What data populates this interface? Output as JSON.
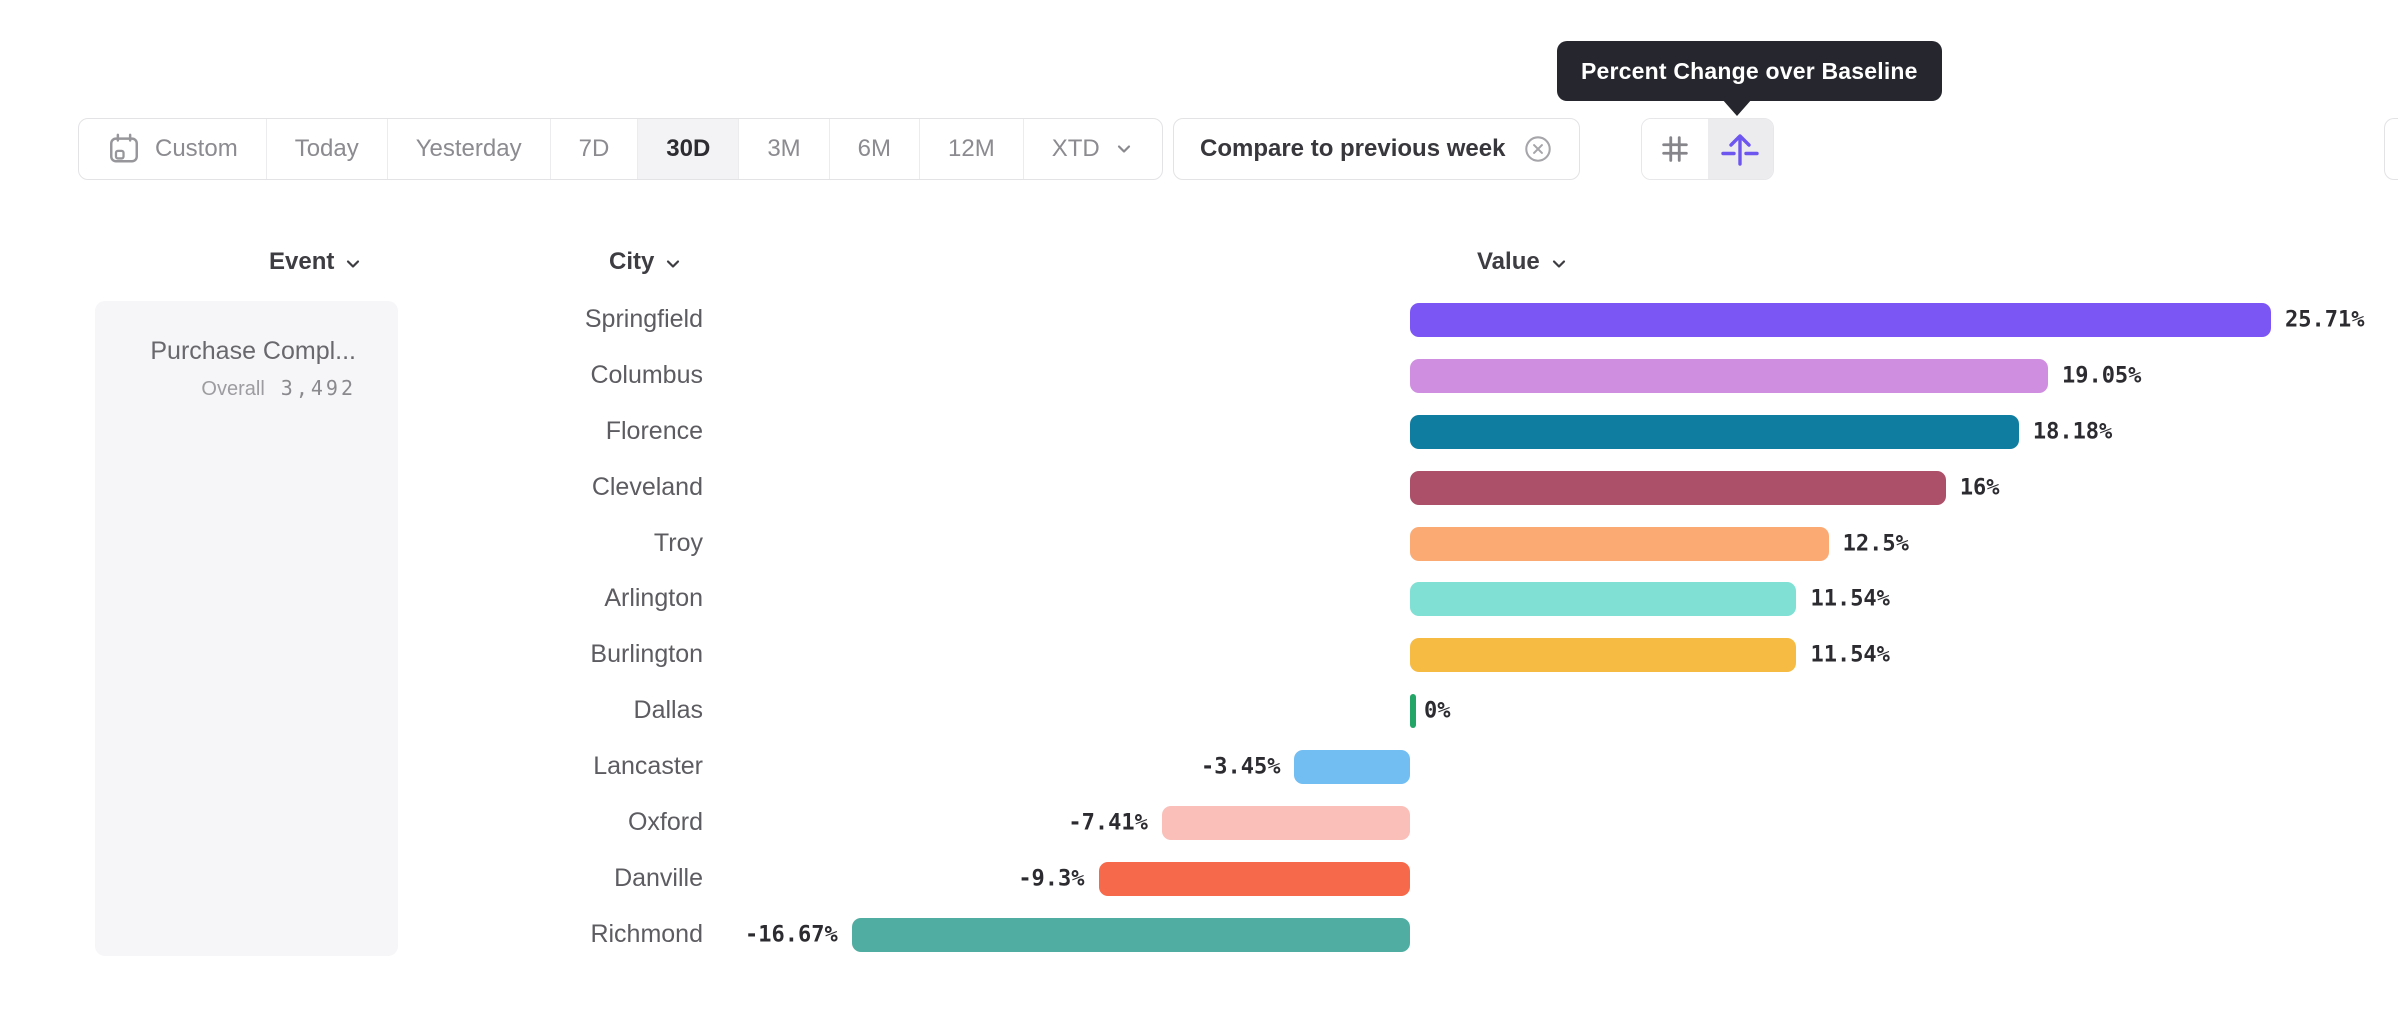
{
  "toolbar": {
    "date_ranges": [
      "Custom",
      "Today",
      "Yesterday",
      "7D",
      "30D",
      "3M",
      "6M",
      "12M",
      "XTD"
    ],
    "selected_range": "30D",
    "compare_label": "Compare to previous week",
    "icons": [
      "calendar-icon",
      "chevron-down-icon",
      "circle-x-icon",
      "hash-grid-icon",
      "arrow-up-from-baseline-icon"
    ]
  },
  "tooltip": {
    "text": "Percent Change over Baseline"
  },
  "columns": {
    "event": "Event",
    "city": "City",
    "value": "Value"
  },
  "event_panel": {
    "event_name": "Purchase Compl...",
    "overall_label": "Overall",
    "overall_value": "3,492"
  },
  "chart_data": {
    "type": "bar",
    "orientation": "horizontal",
    "title": "Percent Change over Baseline",
    "categories": [
      "Springfield",
      "Columbus",
      "Florence",
      "Cleveland",
      "Troy",
      "Arlington",
      "Burlington",
      "Dallas",
      "Lancaster",
      "Oxford",
      "Danville",
      "Richmond"
    ],
    "values": [
      25.71,
      19.05,
      18.18,
      16,
      12.5,
      11.54,
      11.54,
      0,
      -3.45,
      -7.41,
      -9.3,
      -16.67
    ],
    "labels": [
      "25.71%",
      "19.05%",
      "18.18%",
      "16%",
      "12.5%",
      "11.54%",
      "11.54%",
      "0%",
      "-3.45%",
      "-7.41%",
      "-9.3%",
      "-16.67%"
    ],
    "colors": [
      "#7c56f5",
      "#cf8ee0",
      "#0f7da0",
      "#ab5068",
      "#fbaa74",
      "#7fe0d3",
      "#f6bb42",
      "#23a567",
      "#72bdf2",
      "#f9bfb8",
      "#f6694b",
      "#4fada1"
    ],
    "xlim": [
      -16.67,
      25.71
    ],
    "grid": false,
    "legend": false,
    "value_format": "percent"
  }
}
